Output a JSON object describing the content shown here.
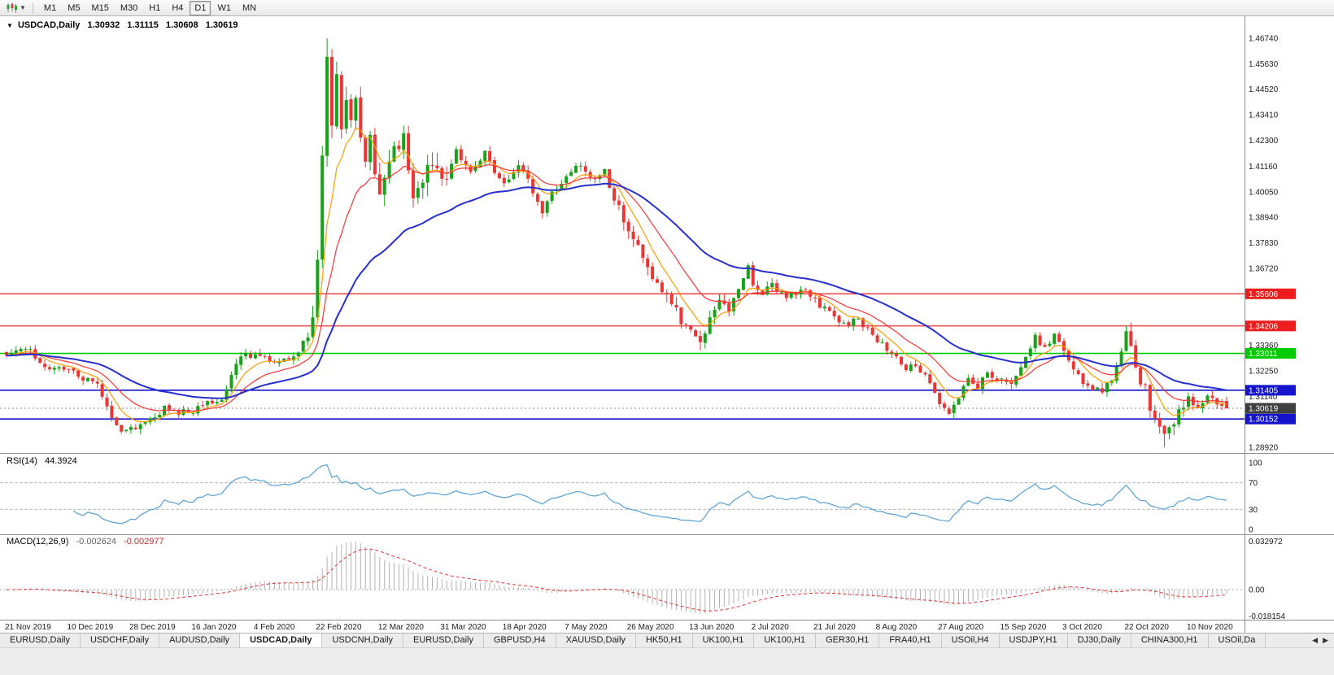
{
  "toolbar": {
    "timeframes": [
      "M1",
      "M5",
      "M15",
      "M30",
      "H1",
      "H4",
      "D1",
      "W1",
      "MN"
    ],
    "active_timeframe": "D1"
  },
  "chart": {
    "title": "USDCAD,Daily",
    "ohlc": {
      "open": "1.30932",
      "high": "1.31115",
      "low": "1.30608",
      "close": "1.30619"
    },
    "price_ticks": [
      "1.46740",
      "1.45630",
      "1.44520",
      "1.43410",
      "1.42300",
      "1.41160",
      "1.40050",
      "1.38940",
      "1.37830",
      "1.36720",
      "1.33360",
      "1.32250",
      "1.31140",
      "1.28920"
    ],
    "h_lines": [
      {
        "price": 1.35606,
        "label": "1.35606",
        "color": "#ee1c1c",
        "width": 1.2
      },
      {
        "price": 1.34206,
        "label": "1.34206",
        "color": "#ee1c1c",
        "width": 1.2
      },
      {
        "price": 1.33011,
        "label": "1.33011",
        "color": "#00cc00",
        "width": 1.6
      },
      {
        "price": 1.31405,
        "label": "1.31405",
        "color": "#1414cc",
        "width": 1.6
      },
      {
        "price": 1.30152,
        "label": "1.30152",
        "color": "#1414cc",
        "width": 1.6
      }
    ],
    "current_price": {
      "value": 1.30619,
      "label": "1.30619"
    },
    "dates": [
      "21 Nov 2019",
      "10 Dec 2019",
      "28 Dec 2019",
      "16 Jan 2020",
      "4 Feb 2020",
      "22 Feb 2020",
      "12 Mar 2020",
      "31 Mar 2020",
      "18 Apr 2020",
      "7 May 2020",
      "26 May 2020",
      "13 Jun 2020",
      "2 Jul 2020",
      "21 Jul 2020",
      "8 Aug 2020",
      "27 Aug 2020",
      "15 Sep 2020",
      "3 Oct 2020",
      "22 Oct 2020",
      "10 Nov 2020"
    ]
  },
  "rsi": {
    "name": "RSI(14)",
    "value": "44.3924",
    "levels": [
      100,
      70,
      30,
      0
    ],
    "line_color": "#56a0d3"
  },
  "macd": {
    "name": "MACD(12,26,9)",
    "main_value": "-0.002624",
    "signal_value": "-0.002977",
    "axis_max": "0.032972",
    "axis_zero": "0.00",
    "axis_min": "-0.018154",
    "hist_color": "#b3b3b3",
    "signal_color": "#e03636"
  },
  "tabs": {
    "items": [
      "EURUSD,Daily",
      "USDCHF,Daily",
      "AUDUSD,Daily",
      "USDCAD,Daily",
      "USDCNH,Daily",
      "EURUSD,Daily",
      "GBPUSD,H4",
      "XAUUSD,Daily",
      "HK50,H1",
      "UK100,H1",
      "UK100,H1",
      "GER30,H1",
      "FRA40,H1",
      "USOil,H4",
      "USDJPY,H1",
      "DJ30,Daily",
      "CHINA300,H1",
      "USOil,Da"
    ],
    "active_index": 3
  },
  "chart_data": {
    "type": "candlestick",
    "symbol": "USDCAD",
    "period": "Daily",
    "price_min_visible": 1.2892,
    "price_max_visible": 1.4674,
    "num_candles": 256,
    "label_every": 13,
    "up_color": "#17a317",
    "down_color": "#ef3434",
    "ma_lines": [
      {
        "type": "ema",
        "period": 7,
        "color": "#ff9b00",
        "width": 1.2
      },
      {
        "type": "ema",
        "period": 16,
        "color": "#ff3232",
        "width": 1.2
      },
      {
        "type": "ema",
        "period": 40,
        "color": "#2730cf",
        "width": 2
      }
    ],
    "close_anchors": [
      [
        0,
        1.3305
      ],
      [
        4,
        1.333
      ],
      [
        8,
        1.3245
      ],
      [
        13,
        1.3235
      ],
      [
        19,
        1.316
      ],
      [
        22,
        1.303
      ],
      [
        24,
        1.2965
      ],
      [
        26,
        1.2975
      ],
      [
        28,
        1.299
      ],
      [
        33,
        1.306
      ],
      [
        36,
        1.304
      ],
      [
        39,
        1.3055
      ],
      [
        42,
        1.308
      ],
      [
        45,
        1.311
      ],
      [
        49,
        1.329
      ],
      [
        52,
        1.3295
      ],
      [
        56,
        1.326
      ],
      [
        59,
        1.328
      ],
      [
        61,
        1.331
      ],
      [
        64,
        1.342
      ],
      [
        65,
        1.372
      ],
      [
        66,
        1.415
      ],
      [
        67,
        1.456
      ],
      [
        68,
        1.431
      ],
      [
        69,
        1.449
      ],
      [
        70,
        1.428
      ],
      [
        71,
        1.442
      ],
      [
        72,
        1.433
      ],
      [
        73,
        1.443
      ],
      [
        74,
        1.424
      ],
      [
        75,
        1.415
      ],
      [
        76,
        1.428
      ],
      [
        77,
        1.406
      ],
      [
        78,
        1.4
      ],
      [
        79,
        1.41
      ],
      [
        81,
        1.418
      ],
      [
        83,
        1.426
      ],
      [
        85,
        1.396
      ],
      [
        86,
        1.404
      ],
      [
        88,
        1.412
      ],
      [
        91,
        1.405
      ],
      [
        94,
        1.418
      ],
      [
        97,
        1.409
      ],
      [
        100,
        1.417
      ],
      [
        102,
        1.41
      ],
      [
        104,
        1.403
      ],
      [
        107,
        1.412
      ],
      [
        109,
        1.406
      ],
      [
        111,
        1.396
      ],
      [
        112,
        1.39
      ],
      [
        114,
        1.4
      ],
      [
        117,
        1.406
      ],
      [
        120,
        1.413
      ],
      [
        123,
        1.406
      ],
      [
        125,
        1.41
      ],
      [
        127,
        1.397
      ],
      [
        129,
        1.388
      ],
      [
        130,
        1.381
      ],
      [
        132,
        1.375
      ],
      [
        134,
        1.368
      ],
      [
        136,
        1.36
      ],
      [
        138,
        1.356
      ],
      [
        140,
        1.351
      ],
      [
        141,
        1.345
      ],
      [
        143,
        1.34
      ],
      [
        145,
        1.333
      ],
      [
        147,
        1.347
      ],
      [
        149,
        1.354
      ],
      [
        151,
        1.349
      ],
      [
        153,
        1.359
      ],
      [
        155,
        1.368
      ],
      [
        156,
        1.36
      ],
      [
        158,
        1.356
      ],
      [
        160,
        1.36
      ],
      [
        163,
        1.355
      ],
      [
        166,
        1.358
      ],
      [
        169,
        1.353
      ],
      [
        172,
        1.348
      ],
      [
        175,
        1.342
      ],
      [
        178,
        1.345
      ],
      [
        180,
        1.34
      ],
      [
        182,
        1.336
      ],
      [
        184,
        1.332
      ],
      [
        186,
        1.328
      ],
      [
        188,
        1.323
      ],
      [
        190,
        1.326
      ],
      [
        192,
        1.32
      ],
      [
        194,
        1.313
      ],
      [
        196,
        1.306
      ],
      [
        197,
        1.305
      ],
      [
        199,
        1.312
      ],
      [
        201,
        1.318
      ],
      [
        203,
        1.315
      ],
      [
        205,
        1.322
      ],
      [
        207,
        1.318
      ],
      [
        208,
        1.32
      ],
      [
        210,
        1.316
      ],
      [
        213,
        1.33
      ],
      [
        215,
        1.337
      ],
      [
        217,
        1.333
      ],
      [
        219,
        1.338
      ],
      [
        221,
        1.331
      ],
      [
        223,
        1.322
      ],
      [
        226,
        1.316
      ],
      [
        229,
        1.313
      ],
      [
        231,
        1.319
      ],
      [
        233,
        1.333
      ],
      [
        234,
        1.338
      ],
      [
        236,
        1.324
      ],
      [
        238,
        1.314
      ],
      [
        240,
        1.301
      ],
      [
        242,
        1.293
      ],
      [
        244,
        1.299
      ],
      [
        245,
        1.306
      ],
      [
        247,
        1.311
      ],
      [
        249,
        1.306
      ],
      [
        251,
        1.311
      ],
      [
        253,
        1.309
      ],
      [
        255,
        1.3062
      ]
    ],
    "vol_zones": [
      [
        64,
        92,
        2.6
      ],
      [
        127,
        150,
        1.6
      ],
      [
        232,
        246,
        1.7
      ]
    ],
    "candle_overrides": {
      "24": {
        "l": 1.295
      },
      "67": {
        "h": 1.4674
      },
      "145": {
        "l": 1.3315
      },
      "234": {
        "h": 1.342
      },
      "242": {
        "l": 1.2893
      },
      "255": {
        "o": 1.30932,
        "h": 1.31115,
        "l": 1.30608,
        "c": 1.30619
      }
    },
    "rsi_current": 44.3924,
    "macd_current": {
      "main": -0.002624,
      "signal": -0.002977
    }
  }
}
